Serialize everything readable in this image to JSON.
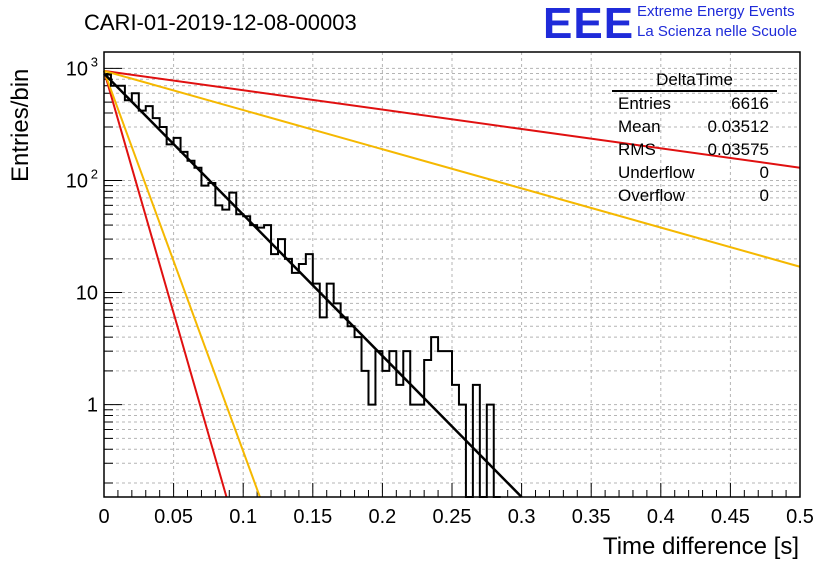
{
  "header": {
    "title": "CARI-01-2019-12-08-00003",
    "logo_text": "EEE",
    "org_line1": "Extreme Energy Events",
    "org_line2": "La Scienza nelle Scuole"
  },
  "stats_box": {
    "name": "DeltaTime",
    "rows": [
      {
        "label": "Entries",
        "value": "6616"
      },
      {
        "label": "Mean",
        "value": "0.03512"
      },
      {
        "label": "RMS",
        "value": "0.03575"
      },
      {
        "label": "Underflow",
        "value": "0"
      },
      {
        "label": "Overflow",
        "value": "0"
      }
    ]
  },
  "colors": {
    "histogram": "#000000",
    "fit": "#000000",
    "red_curves": "#e01010",
    "yellow_curves": "#f5b800",
    "logo": "#1f2bd9",
    "grid": "#b4b4b4"
  },
  "chart_data": {
    "type": "line",
    "title": "CARI-01-2019-12-08-00003",
    "xlabel": "Time difference [s]",
    "ylabel": "Entries/bin",
    "xlim": [
      0,
      0.5
    ],
    "ylim": [
      0.15,
      1400
    ],
    "yscale": "log",
    "grid": true,
    "x_ticks": [
      "0",
      "0.05",
      "0.1",
      "0.15",
      "0.2",
      "0.25",
      "0.3",
      "0.35",
      "0.4",
      "0.45",
      "0.5"
    ],
    "y_ticks": [
      "1",
      "10",
      "10^2",
      "10^3"
    ],
    "histogram": {
      "name": "DeltaTime",
      "bin_width": 0.005,
      "bin_start": 0,
      "values": [
        880,
        700,
        700,
        520,
        600,
        420,
        460,
        360,
        300,
        210,
        240,
        180,
        150,
        130,
        90,
        95,
        60,
        55,
        78,
        50,
        48,
        40,
        38,
        40,
        22,
        30,
        20,
        15,
        18,
        22,
        12,
        6,
        12,
        8,
        6,
        5,
        4,
        2,
        1,
        3,
        2,
        3,
        1.5,
        3,
        1,
        1,
        2.5,
        4,
        3,
        3,
        1.5,
        1,
        0,
        1.5,
        0.1,
        1,
        0.1
      ]
    },
    "series": [
      {
        "x": [
          0,
          0.3
        ],
        "y": [
          900,
          0.15
        ],
        "color": "#000000"
      },
      {
        "x": [
          0,
          0.5
        ],
        "y": [
          950,
          130
        ],
        "color": "#e01010"
      },
      {
        "x": [
          0,
          0.5
        ],
        "y": [
          950,
          17
        ],
        "color": "#f5b800"
      },
      {
        "x": [
          0,
          0.088
        ],
        "y": [
          950,
          0.15
        ],
        "color": "#e01010"
      },
      {
        "x": [
          0,
          0.112
        ],
        "y": [
          950,
          0.15
        ],
        "color": "#f5b800"
      }
    ]
  }
}
